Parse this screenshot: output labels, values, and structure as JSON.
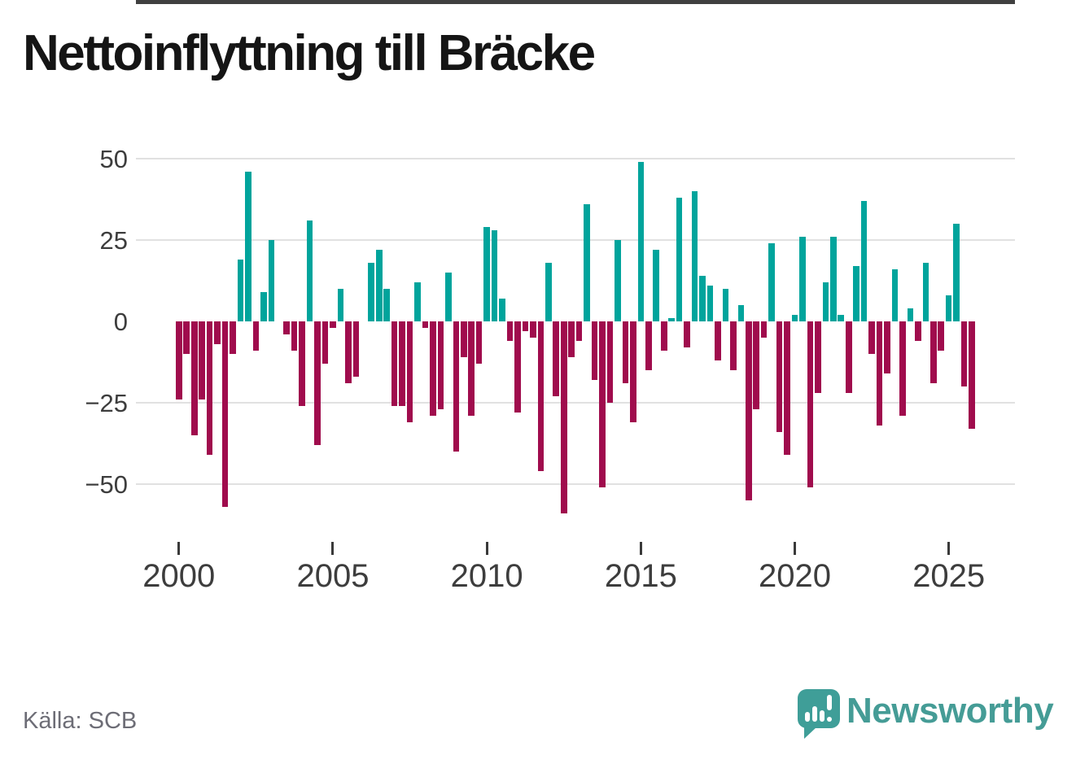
{
  "header": {
    "title": "Nettoinflyttning till Bräcke"
  },
  "footer": {
    "source": "Källa: SCB",
    "brand": "Newsworthy"
  },
  "colors": {
    "positive": "#00a49c",
    "negative": "#a00c4d",
    "zero_line": "#404040",
    "gridline": "#e1e1e1",
    "brand_teal": "#3f9e98"
  },
  "chart_data": {
    "type": "bar",
    "title": "Nettoinflyttning till Bräcke",
    "frequency": "quarterly",
    "x_start": "2000-Q1",
    "x_end": "2025-Q4",
    "grid": true,
    "y_axis": {
      "ticks": [
        {
          "label": "50",
          "value": 50
        },
        {
          "label": "25",
          "value": 25
        },
        {
          "label": "0",
          "value": 0
        },
        {
          "label": "−25",
          "value": -25
        },
        {
          "label": "−50",
          "value": -50
        }
      ],
      "ylim": [
        -62,
        52
      ]
    },
    "x_axis": {
      "tick_labels": [
        "2000",
        "2005",
        "2010",
        "2015",
        "2020",
        "2025"
      ],
      "quarters_per_tick": 20
    },
    "values": [
      -24,
      -10,
      -35,
      -24,
      -41,
      -7,
      -57,
      -10,
      19,
      46,
      -9,
      9,
      25,
      0,
      -4,
      -9,
      -26,
      31,
      -38,
      -13,
      -2,
      10,
      -19,
      -17,
      0,
      18,
      22,
      10,
      -26,
      -26,
      -31,
      12,
      -2,
      -29,
      -27,
      15,
      -40,
      -11,
      -29,
      -13,
      29,
      28,
      7,
      -6,
      -28,
      -3,
      -5,
      -46,
      18,
      -23,
      -59,
      -11,
      -6,
      36,
      -18,
      -51,
      -25,
      25,
      -19,
      -31,
      49,
      -15,
      22,
      -9,
      1,
      38,
      -8,
      40,
      14,
      11,
      -12,
      10,
      -15,
      5,
      -55,
      -27,
      -5,
      24,
      -34,
      -41,
      2,
      26,
      -51,
      -22,
      12,
      26,
      2,
      -22,
      17,
      37,
      -10,
      -32,
      -16,
      16,
      -29,
      4,
      -6,
      18,
      -19,
      -9,
      8,
      30,
      -20,
      -33
    ]
  }
}
